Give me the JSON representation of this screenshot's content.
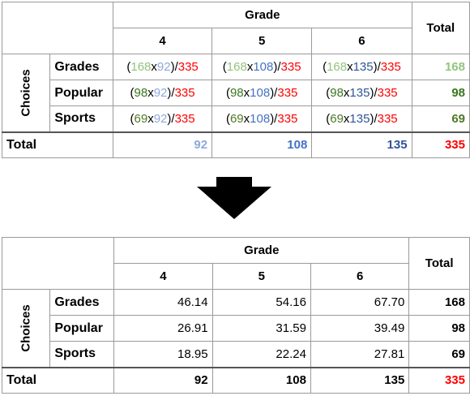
{
  "header": {
    "grade_label": "Grade",
    "total_label": "Total",
    "choices_label": "Choices",
    "grades": [
      "4",
      "5",
      "6"
    ]
  },
  "rows": [
    {
      "label": "Grades"
    },
    {
      "label": "Popular"
    },
    {
      "label": "Sports"
    }
  ],
  "totals_label": "Total",
  "row_totals": [
    "168",
    "98",
    "69"
  ],
  "col_totals": [
    "92",
    "108",
    "135"
  ],
  "grand_total": "335",
  "formula_tokens": {
    "open": "(",
    "times": "x",
    "close_div": ")/"
  },
  "expected_values": [
    [
      "46.14",
      "54.16",
      "67.70"
    ],
    [
      "26.91",
      "31.59",
      "39.49"
    ],
    [
      "18.95",
      "22.24",
      "27.81"
    ]
  ],
  "colors": {
    "grades_row": "#93c47d",
    "popular_row": "#38761d",
    "sports_row": "#4e7a25",
    "grade4": "#8eaadb",
    "grade5": "#4472c4",
    "grade6": "#2f5597",
    "grand_total": "#ff0000"
  },
  "arrow_icon": "down-arrow-icon"
}
